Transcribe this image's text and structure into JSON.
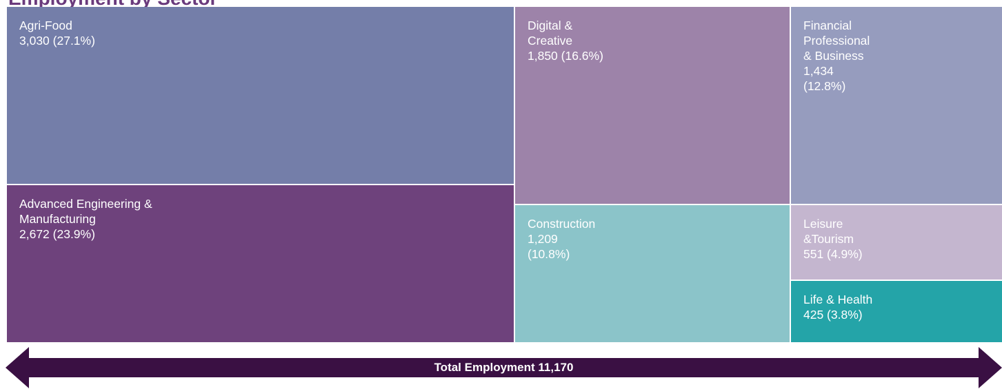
{
  "title": "Employment by Sector",
  "colors": {
    "agri_food": "#747ea9",
    "advanced_engineering": "#6e427c",
    "digital_creative": "#9d83a9",
    "construction": "#8bc4c9",
    "financial": "#969cbe",
    "leisure": "#c4b6cf",
    "life_health": "#24a4a8",
    "arrow": "#3a1043"
  },
  "chart_data": {
    "type": "treemap",
    "total_label": "Total Employment 11,170",
    "total": 11170,
    "items": [
      {
        "key": "agri_food",
        "name": "Agri-Food",
        "value": 3030,
        "label": "3,030 (27.1%)"
      },
      {
        "key": "advanced_engineering",
        "name": "Advanced Engineering &\nManufacturing",
        "value": 2672,
        "label": "2,672 (23.9%)"
      },
      {
        "key": "digital_creative",
        "name": "Digital &\nCreative",
        "value": 1850,
        "label": "1,850 (16.6%)"
      },
      {
        "key": "construction",
        "name": "Construction",
        "value": 1209,
        "label": "1,209\n(10.8%)"
      },
      {
        "key": "financial",
        "name": "Financial\nProfessional\n& Business",
        "value": 1434,
        "label": "1,434\n(12.8%)"
      },
      {
        "key": "leisure",
        "name": "Leisure\n&Tourism",
        "value": 551,
        "label": "551 (4.9%)"
      },
      {
        "key": "life_health",
        "name": "Life & Health",
        "value": 425,
        "label": "425 (3.8%)"
      }
    ]
  }
}
